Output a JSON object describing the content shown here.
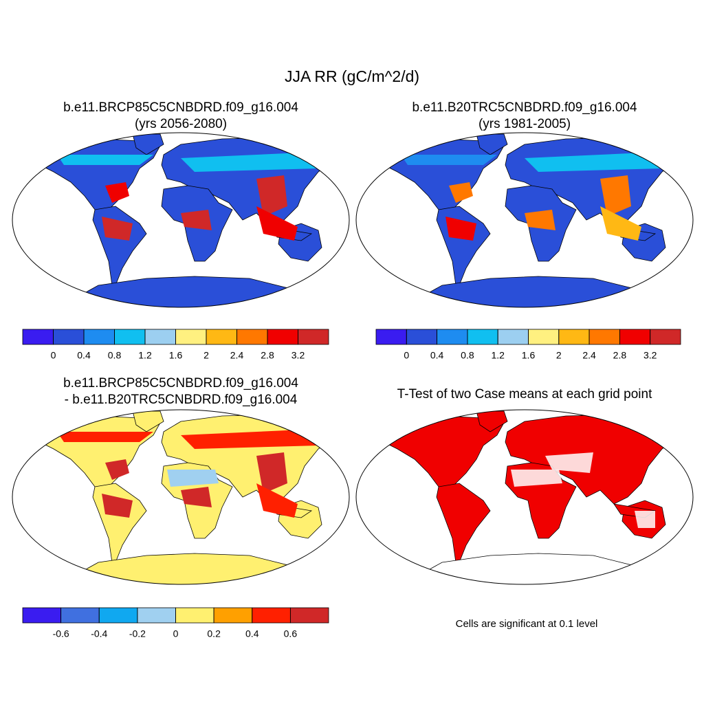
{
  "title": "JJA RR (gC/m^2/d)",
  "panels": [
    {
      "title": [
        "b.e11.BRCP85C5CNBDRD.f09_g16.004",
        "(yrs 2056-2080)"
      ],
      "colorbar": {
        "colors": [
          "#3a1cf0",
          "#2a4fd8",
          "#1e8cf0",
          "#10bff0",
          "#9ccff0",
          "#fff080",
          "#ffb814",
          "#ff7800",
          "#f00000",
          "#d02828"
        ],
        "ticks": [
          0,
          0.4,
          0.8,
          1.2,
          1.6,
          2,
          2.4,
          2.8,
          3.2
        ]
      }
    },
    {
      "title": [
        "b.e11.B20TRC5CNBDRD.f09_g16.004",
        "(yrs 1981-2005)"
      ],
      "colorbar": {
        "colors": [
          "#3a1cf0",
          "#2a4fd8",
          "#1e8cf0",
          "#10bff0",
          "#9ccff0",
          "#fff080",
          "#ffb814",
          "#ff7800",
          "#f00000",
          "#d02828"
        ],
        "ticks": [
          0,
          0.4,
          0.8,
          1.2,
          1.6,
          2,
          2.4,
          2.8,
          3.2
        ]
      }
    },
    {
      "title": [
        "b.e11.BRCP85C5CNBDRD.f09_g16.004",
        "- b.e11.B20TRC5CNBDRD.f09_g16.004"
      ],
      "colorbar": {
        "colors": [
          "#3a1cf0",
          "#4070e0",
          "#10a8f0",
          "#a0d0f0",
          "#fff070",
          "#ffa000",
          "#ff2000",
          "#d02828"
        ],
        "ticks": [
          -0.6,
          -0.4,
          -0.2,
          0,
          0.2,
          0.4,
          0.6
        ]
      }
    },
    {
      "title": [
        "T-Test of two Case means at each grid point"
      ],
      "note": "Cells are significant at 0.1 level"
    }
  ]
}
